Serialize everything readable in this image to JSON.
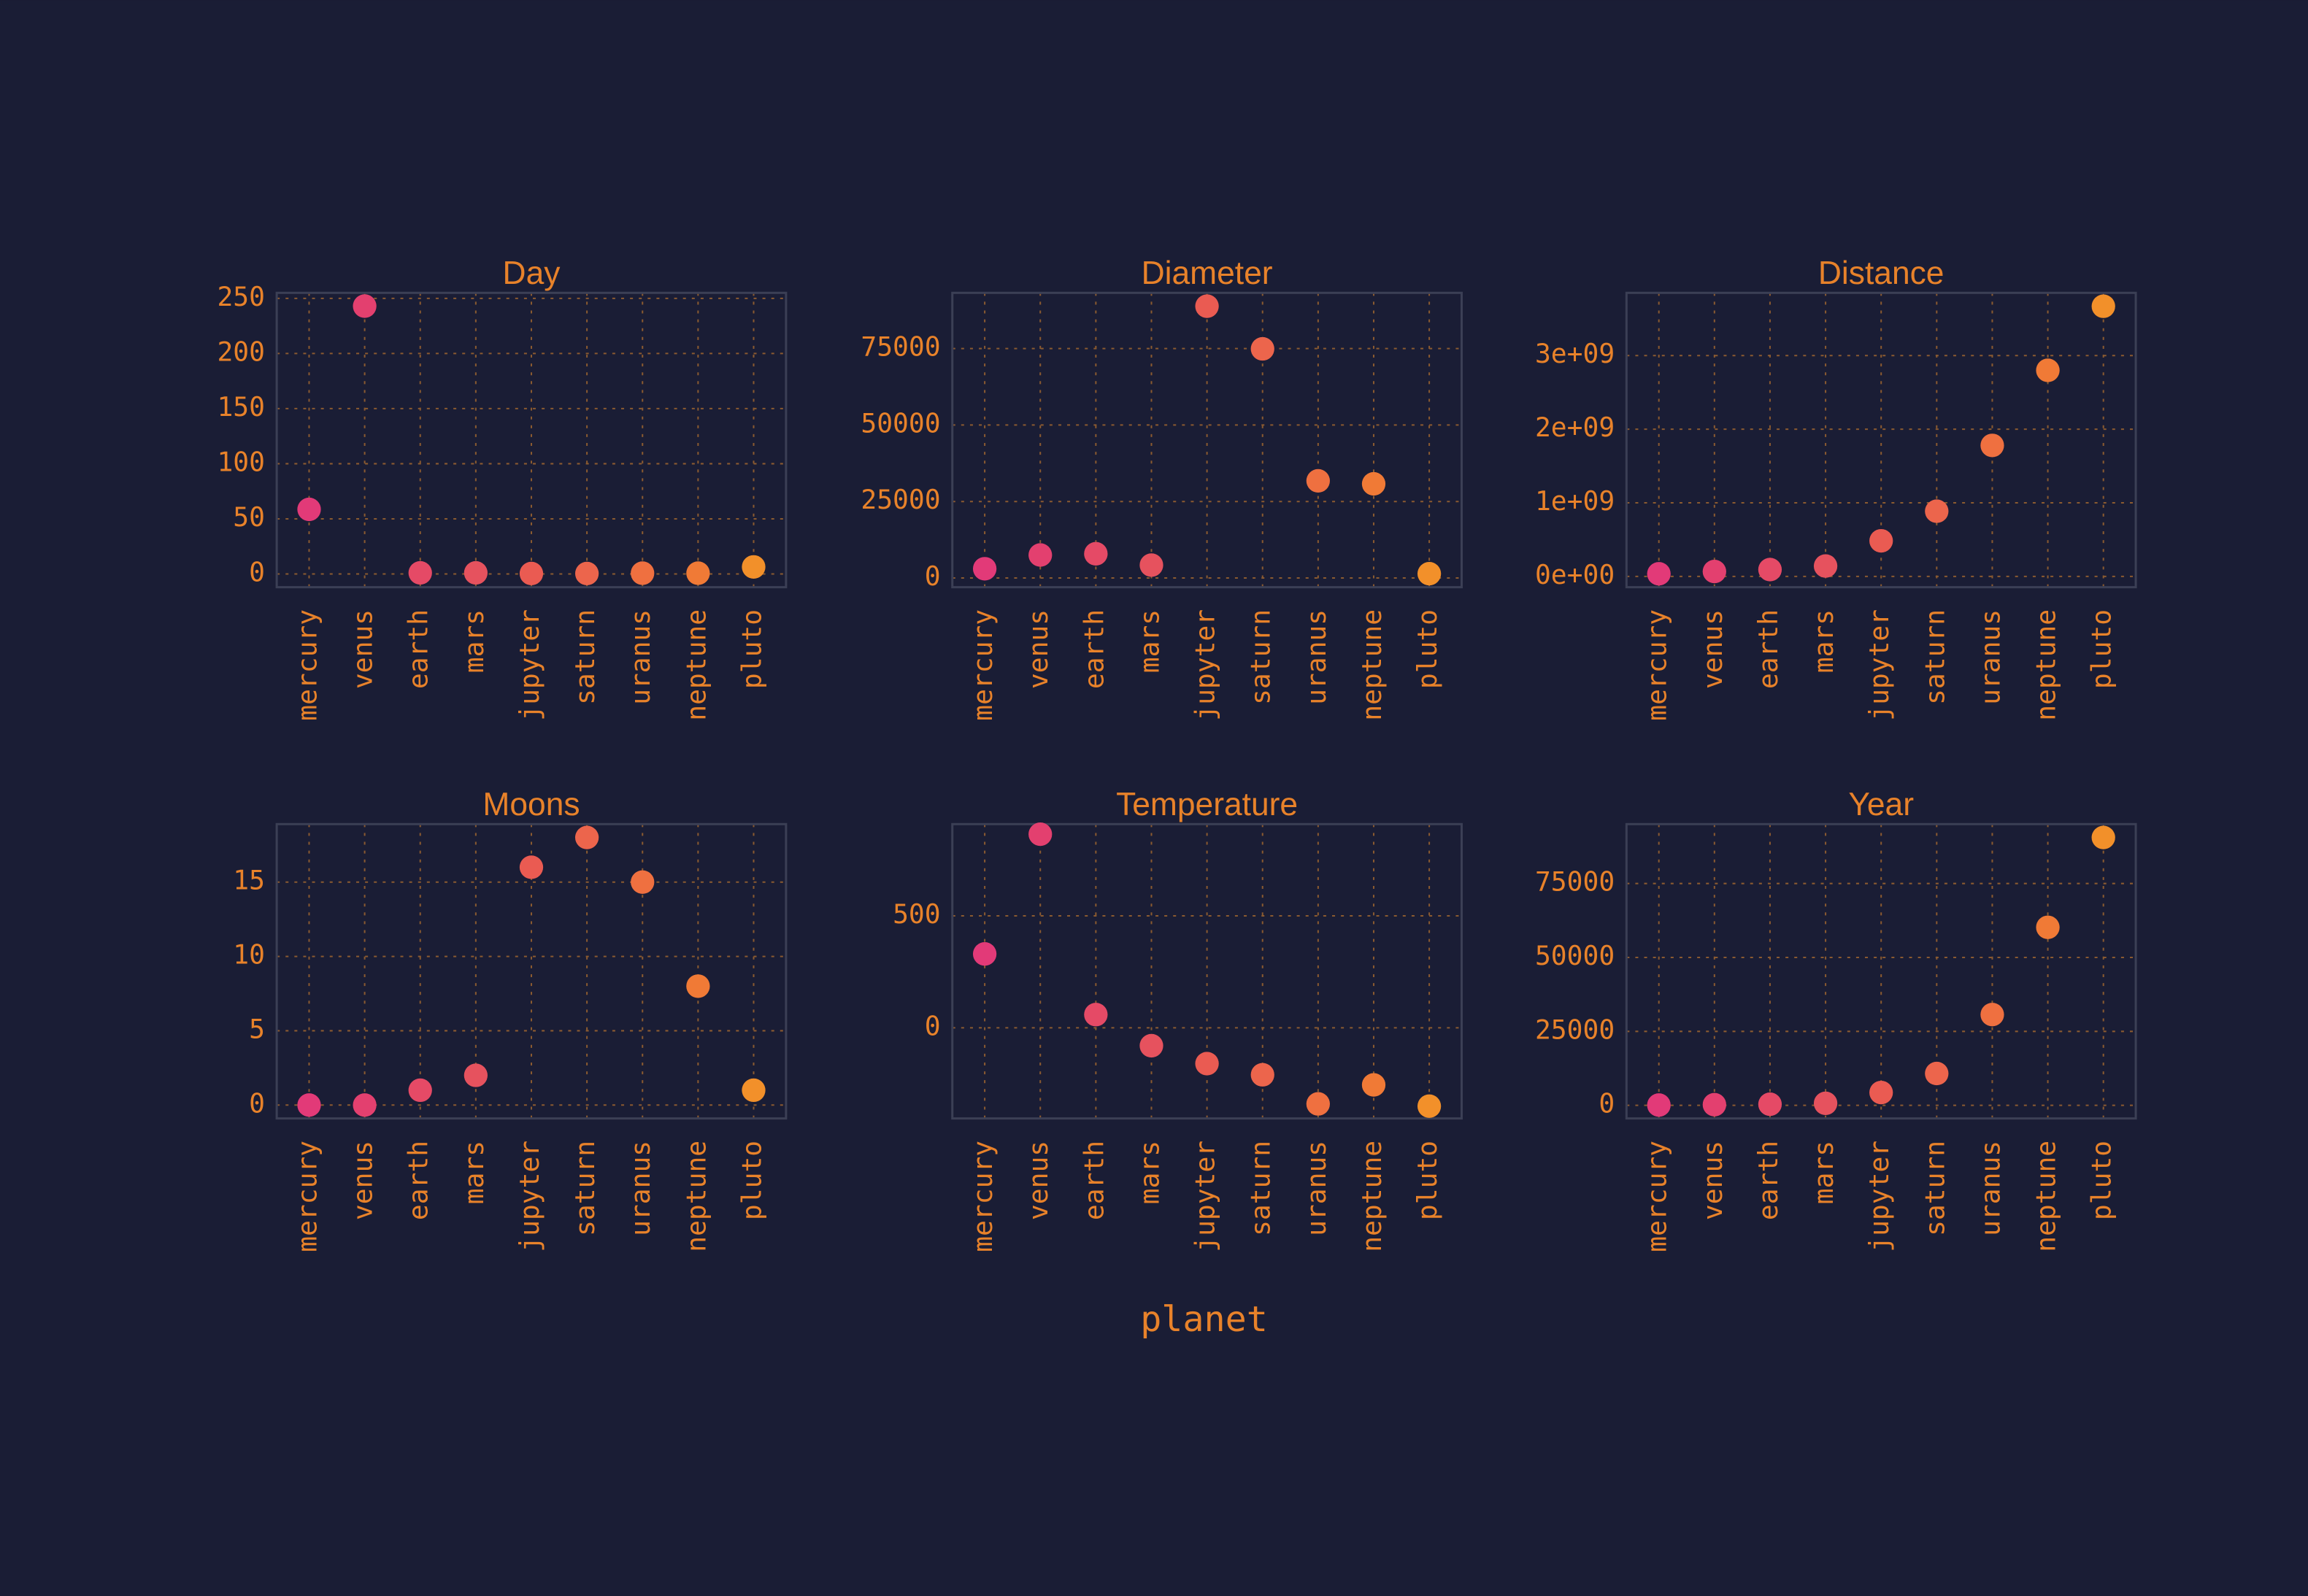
{
  "x_label": "planet",
  "chart_data": [
    {
      "type": "scatter",
      "title": "Day",
      "categories": [
        "mercury",
        "venus",
        "earth",
        "mars",
        "jupyter",
        "saturn",
        "uranus",
        "neptune",
        "pluto"
      ],
      "values": [
        58.6,
        243,
        1,
        1,
        0.4,
        0.4,
        0.7,
        0.7,
        6.4
      ],
      "colors": [
        "#e23a78",
        "#e3406f",
        "#e54a66",
        "#e6525e",
        "#ea5b52",
        "#ec654c",
        "#ef7040",
        "#f07a36",
        "#f2902a"
      ],
      "ylim": [
        -12,
        255
      ],
      "yticks": [
        0,
        50,
        100,
        150,
        200,
        250
      ],
      "grid": true
    },
    {
      "type": "scatter",
      "title": "Diameter",
      "categories": [
        "mercury",
        "venus",
        "earth",
        "mars",
        "jupyter",
        "saturn",
        "uranus",
        "neptune",
        "pluto"
      ],
      "values": [
        3032,
        7521,
        7926,
        4222,
        88846,
        74898,
        31763,
        30775,
        1413
      ],
      "colors": [
        "#e23a78",
        "#e3406f",
        "#e54a66",
        "#e6525e",
        "#ea5b52",
        "#ec654c",
        "#ef7040",
        "#f07a36",
        "#f2902a"
      ],
      "ylim": [
        -3000,
        93200
      ],
      "yticks": [
        0,
        25000,
        50000,
        75000
      ],
      "grid": true
    },
    {
      "type": "scatter",
      "title": "Distance",
      "categories": [
        "mercury",
        "venus",
        "earth",
        "mars",
        "jupyter",
        "saturn",
        "uranus",
        "neptune",
        "pluto"
      ],
      "values": [
        36000000,
        67200000,
        92960000,
        141600000,
        483800000,
        886000000,
        1780000000,
        2800000000,
        3670000000
      ],
      "colors": [
        "#e23a78",
        "#e3406f",
        "#e54a66",
        "#e6525e",
        "#ea5b52",
        "#ec654c",
        "#ef7040",
        "#f07a36",
        "#f2902a"
      ],
      "ylim": [
        -146000000,
        3852000000
      ],
      "yticks": [
        {
          "value": 0,
          "label": "0e+00"
        },
        {
          "value": 1000000000,
          "label": "1e+09"
        },
        {
          "value": 2000000000,
          "label": "2e+09"
        },
        {
          "value": 3000000000,
          "label": "3e+09"
        }
      ],
      "grid": true
    },
    {
      "type": "scatter",
      "title": "Moons",
      "categories": [
        "mercury",
        "venus",
        "earth",
        "mars",
        "jupyter",
        "saturn",
        "uranus",
        "neptune",
        "pluto"
      ],
      "values": [
        0,
        0,
        1,
        2,
        16,
        18,
        15,
        8,
        1
      ],
      "colors": [
        "#e23a78",
        "#e3406f",
        "#e54a66",
        "#e6525e",
        "#ea5b52",
        "#ec654c",
        "#ef7040",
        "#f07a36",
        "#f2902a"
      ],
      "ylim": [
        -0.9,
        18.9
      ],
      "yticks": [
        0,
        5,
        10,
        15
      ],
      "grid": true
    },
    {
      "type": "scatter",
      "title": "Temperature",
      "categories": [
        "mercury",
        "venus",
        "earth",
        "mars",
        "jupyter",
        "saturn",
        "uranus",
        "neptune",
        "pluto"
      ],
      "values": [
        330,
        865,
        59,
        -80,
        -160,
        -210,
        -340,
        -255,
        -350
      ],
      "colors": [
        "#e23a78",
        "#e3406f",
        "#e54a66",
        "#e6525e",
        "#ea5b52",
        "#ec654c",
        "#ef7040",
        "#f07a36",
        "#f2902a"
      ],
      "ylim": [
        -405,
        910
      ],
      "yticks": [
        0,
        500
      ],
      "grid": true
    },
    {
      "type": "scatter",
      "title": "Year",
      "categories": [
        "mercury",
        "venus",
        "earth",
        "mars",
        "jupyter",
        "saturn",
        "uranus",
        "neptune",
        "pluto"
      ],
      "values": [
        88,
        225,
        365,
        687,
        4331,
        10759,
        30687,
        60190,
        90560
      ],
      "colors": [
        "#e23a78",
        "#e3406f",
        "#e54a66",
        "#e6525e",
        "#ea5b52",
        "#ec654c",
        "#ef7040",
        "#f07a36",
        "#f2902a"
      ],
      "ylim": [
        -4436,
        95084
      ],
      "yticks": [
        0,
        25000,
        50000,
        75000
      ],
      "grid": true
    }
  ]
}
